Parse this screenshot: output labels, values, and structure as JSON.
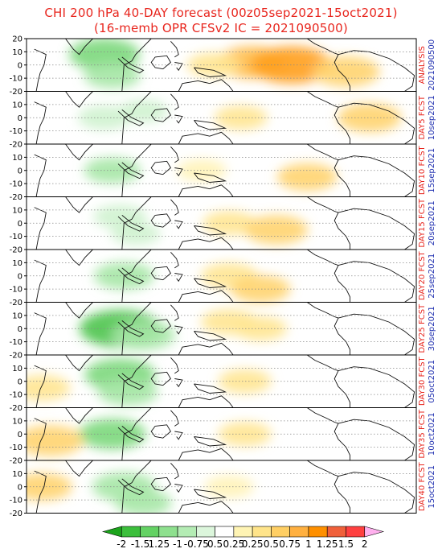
{
  "title_line1": "CHI 200 hPa 40-DAY forecast (00z05sep2021-15oct2021)",
  "title_line2": "(16-memb OPR CFSv2 IC = 2021090500)",
  "chart_data": {
    "type": "heatmap",
    "variable": "CHI 200 hPa",
    "panels": [
      {
        "label_top": "ANALYSIS",
        "label_bottom": "2021090500"
      },
      {
        "label_top": "DAY5 FCST",
        "label_bottom": "10sep2021"
      },
      {
        "label_top": "DAY10 FCST",
        "label_bottom": "15sep2021"
      },
      {
        "label_top": "DAY15 FCST",
        "label_bottom": "20sep2021"
      },
      {
        "label_top": "DAY20 FCST",
        "label_bottom": "25sep2021"
      },
      {
        "label_top": "DAY25 FCST",
        "label_bottom": "30sep2021"
      },
      {
        "label_top": "DAY30 FCST",
        "label_bottom": "05oct2021"
      },
      {
        "label_top": "DAY35 FCST",
        "label_bottom": "10oct2021"
      },
      {
        "label_top": "DAY40 FCST",
        "label_bottom": "15oct2021"
      }
    ],
    "y_ticks": [
      20,
      10,
      0,
      -10,
      -20
    ],
    "ylim": [
      -20,
      20
    ],
    "colorbar": {
      "levels": [
        "-2",
        "-1.5",
        "1.25",
        "-1",
        "-0.75",
        "0.5",
        "0.25",
        "0.25",
        "0.5",
        "0.75",
        "1",
        "1.25",
        "1.5",
        "2"
      ],
      "colors": [
        "#1ca41c",
        "#3cbf3c",
        "#64d264",
        "#8ee08e",
        "#b4ecb4",
        "#dcf6dc",
        "#ffffff",
        "#fff4b4",
        "#ffe48a",
        "#ffcf64",
        "#ffb040",
        "#ff9000",
        "#f0603a",
        "#ff4040",
        "#ffb0ee"
      ]
    },
    "features": [
      {
        "panel": 0,
        "lon": 0.2,
        "lat": 8,
        "value": -1.0
      },
      {
        "panel": 0,
        "lon": 0.22,
        "lat": -8,
        "value": -0.6
      },
      {
        "panel": 0,
        "lon": 0.58,
        "lat": 2,
        "value": 1.0
      },
      {
        "panel": 0,
        "lon": 0.68,
        "lat": 0,
        "value": 1.3
      },
      {
        "panel": 0,
        "lon": 0.48,
        "lat": 0,
        "value": 0.5
      },
      {
        "panel": 0,
        "lon": 0.82,
        "lat": -5,
        "value": 0.9
      },
      {
        "panel": 1,
        "lon": 0.2,
        "lat": 0,
        "value": -0.5
      },
      {
        "panel": 1,
        "lon": 0.3,
        "lat": 5,
        "value": -0.4
      },
      {
        "panel": 1,
        "lon": 0.55,
        "lat": 0,
        "value": 0.5
      },
      {
        "panel": 1,
        "lon": 0.88,
        "lat": 0,
        "value": 0.8
      },
      {
        "panel": 2,
        "lon": 0.22,
        "lat": 0,
        "value": -0.6
      },
      {
        "panel": 2,
        "lon": 0.45,
        "lat": 0,
        "value": 0.4
      },
      {
        "panel": 2,
        "lon": 0.72,
        "lat": -5,
        "value": 0.7
      },
      {
        "panel": 3,
        "lon": 0.24,
        "lat": 5,
        "value": -0.5
      },
      {
        "panel": 3,
        "lon": 0.28,
        "lat": -8,
        "value": -0.4
      },
      {
        "panel": 3,
        "lon": 0.52,
        "lat": 0,
        "value": 0.5
      },
      {
        "panel": 3,
        "lon": 0.64,
        "lat": -5,
        "value": 0.8
      },
      {
        "panel": 4,
        "lon": 0.25,
        "lat": 0,
        "value": -0.7
      },
      {
        "panel": 4,
        "lon": 0.52,
        "lat": 0,
        "value": 0.6
      },
      {
        "panel": 4,
        "lon": 0.6,
        "lat": -10,
        "value": 0.7
      },
      {
        "panel": 5,
        "lon": 0.24,
        "lat": 0,
        "value": -1.3
      },
      {
        "panel": 5,
        "lon": 0.3,
        "lat": -5,
        "value": -0.8
      },
      {
        "panel": 5,
        "lon": 0.52,
        "lat": 5,
        "value": 0.6
      },
      {
        "panel": 5,
        "lon": 0.6,
        "lat": 0,
        "value": 0.5
      },
      {
        "panel": 6,
        "lon": 0.24,
        "lat": 5,
        "value": -1.0
      },
      {
        "panel": 6,
        "lon": 0.26,
        "lat": -8,
        "value": -0.7
      },
      {
        "panel": 6,
        "lon": 0.56,
        "lat": 0,
        "value": 0.5
      },
      {
        "panel": 6,
        "lon": 0.04,
        "lat": -5,
        "value": 0.6
      },
      {
        "panel": 7,
        "lon": 0.22,
        "lat": 0,
        "value": -0.9
      },
      {
        "panel": 7,
        "lon": 0.06,
        "lat": -5,
        "value": 0.9
      },
      {
        "panel": 7,
        "lon": 0.56,
        "lat": 0,
        "value": 0.5
      },
      {
        "panel": 8,
        "lon": 0.25,
        "lat": 0,
        "value": -0.8
      },
      {
        "panel": 8,
        "lon": 0.3,
        "lat": -12,
        "value": -0.6
      },
      {
        "panel": 8,
        "lon": 0.04,
        "lat": 0,
        "value": 0.7
      },
      {
        "panel": 8,
        "lon": 0.52,
        "lat": 0,
        "value": 0.4
      }
    ]
  }
}
